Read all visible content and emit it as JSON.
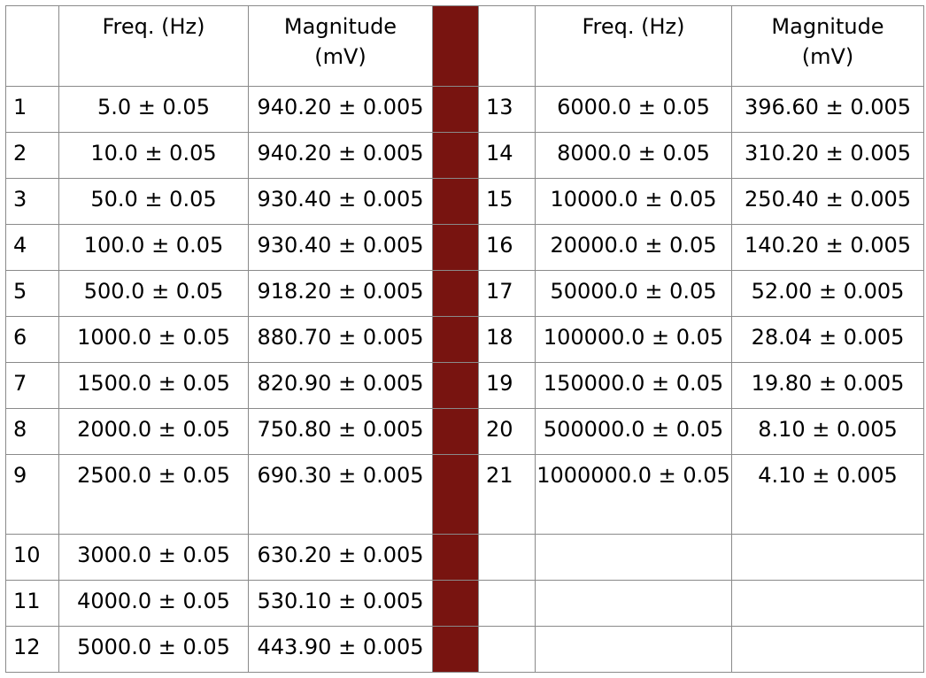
{
  "headers": {
    "left_freq": "Freq. (Hz)",
    "left_mag_line1": "Magnitude",
    "left_mag_line2": "(mV)",
    "right_freq": "Freq. (Hz)",
    "right_mag_line1": "Magnitude",
    "right_mag_line2": "(mV)"
  },
  "colors": {
    "separator": "#781410",
    "grid_lines": "#8a8a8a"
  },
  "left_rows": [
    {
      "n": "1",
      "freq": "5.0 ± 0.05",
      "mag": "940.20 ± 0.005"
    },
    {
      "n": "2",
      "freq": "10.0 ± 0.05",
      "mag": "940.20 ± 0.005"
    },
    {
      "n": "3",
      "freq": "50.0 ± 0.05",
      "mag": "930.40 ± 0.005"
    },
    {
      "n": "4",
      "freq": "100.0 ± 0.05",
      "mag": "930.40 ± 0.005"
    },
    {
      "n": "5",
      "freq": "500.0 ± 0.05",
      "mag": "918.20 ± 0.005"
    },
    {
      "n": "6",
      "freq": "1000.0 ± 0.05",
      "mag": "880.70 ± 0.005"
    },
    {
      "n": "7",
      "freq": "1500.0 ± 0.05",
      "mag": "820.90 ± 0.005"
    },
    {
      "n": "8",
      "freq": "2000.0 ± 0.05",
      "mag": "750.80 ± 0.005"
    },
    {
      "n": "9",
      "freq": "2500.0 ± 0.05",
      "mag": "690.30 ± 0.005"
    },
    {
      "n": "10",
      "freq": "3000.0 ± 0.05",
      "mag": "630.20 ± 0.005"
    },
    {
      "n": "11",
      "freq": "4000.0 ± 0.05",
      "mag": "530.10 ± 0.005"
    },
    {
      "n": "12",
      "freq": "5000.0 ± 0.05",
      "mag": "443.90 ± 0.005"
    }
  ],
  "right_rows": [
    {
      "n": "13",
      "freq": "6000.0 ± 0.05",
      "mag": "396.60 ± 0.005"
    },
    {
      "n": "14",
      "freq": "8000.0 ± 0.05",
      "mag": "310.20 ± 0.005"
    },
    {
      "n": "15",
      "freq": "10000.0 ± 0.05",
      "mag": "250.40 ± 0.005"
    },
    {
      "n": "16",
      "freq": "20000.0 ± 0.05",
      "mag": "140.20 ± 0.005"
    },
    {
      "n": "17",
      "freq": "50000.0 ± 0.05",
      "mag": "52.00 ± 0.005"
    },
    {
      "n": "18",
      "freq": "100000.0 ± 0.05",
      "mag": "28.04 ± 0.005"
    },
    {
      "n": "19",
      "freq": "150000.0 ± 0.05",
      "mag": "19.80 ± 0.005"
    },
    {
      "n": "20",
      "freq": "500000.0 ± 0.05",
      "mag": "8.10 ± 0.005"
    },
    {
      "n": "21",
      "freq": "1000000.0 ± 0.05",
      "mag": "4.10 ± 0.005"
    }
  ]
}
